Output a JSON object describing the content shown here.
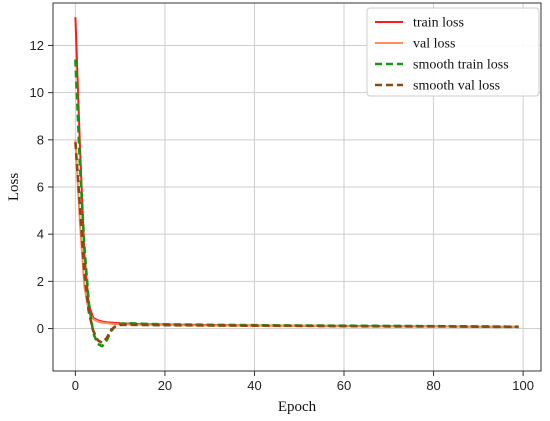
{
  "chart_data": {
    "type": "line",
    "title": "",
    "xlabel": "Epoch",
    "ylabel": "Loss",
    "xlim": [
      -5,
      104
    ],
    "ylim": [
      -1.8,
      13.8
    ],
    "xticks": [
      0,
      20,
      40,
      60,
      80,
      100
    ],
    "yticks": [
      0,
      2,
      4,
      6,
      8,
      10,
      12
    ],
    "grid": true,
    "legend_position": "top-right",
    "series": [
      {
        "name": "train loss",
        "color": "#ff1a1a",
        "dash": "solid",
        "x": [
          0,
          1,
          2,
          3,
          4,
          5,
          6,
          7,
          8,
          10,
          15,
          20,
          30,
          40,
          50,
          60,
          70,
          80,
          90,
          99
        ],
        "y": [
          13.2,
          7.8,
          3.2,
          1.0,
          0.45,
          0.35,
          0.3,
          0.27,
          0.25,
          0.22,
          0.19,
          0.17,
          0.15,
          0.13,
          0.12,
          0.11,
          0.1,
          0.09,
          0.08,
          0.07
        ]
      },
      {
        "name": "val loss",
        "color": "#ff8c5a",
        "dash": "solid",
        "x": [
          0,
          1,
          2,
          3,
          4,
          5,
          6,
          8,
          10,
          15,
          20,
          30,
          40,
          50,
          60,
          70,
          80,
          90,
          99
        ],
        "y": [
          8.0,
          4.5,
          1.8,
          0.7,
          0.4,
          0.3,
          0.25,
          0.2,
          0.18,
          0.16,
          0.15,
          0.13,
          0.12,
          0.11,
          0.1,
          0.09,
          0.09,
          0.08,
          0.07
        ]
      },
      {
        "name": "smooth train  loss",
        "color": "#119911",
        "dash": "dashed",
        "x": [
          0,
          1,
          2,
          3,
          4,
          5,
          6,
          7,
          8,
          9,
          10,
          12,
          15,
          20,
          30,
          40,
          50,
          60,
          70,
          80,
          90,
          99
        ],
        "y": [
          11.4,
          7.0,
          3.5,
          1.1,
          -0.2,
          -0.65,
          -0.75,
          -0.5,
          -0.1,
          0.12,
          0.2,
          0.22,
          0.2,
          0.18,
          0.16,
          0.14,
          0.13,
          0.12,
          0.11,
          0.1,
          0.09,
          0.08
        ]
      },
      {
        "name": "smooth val  loss",
        "color": "#8b4a10",
        "dash": "dashed",
        "x": [
          0,
          1,
          2,
          3,
          4,
          5,
          6,
          7,
          8,
          9,
          10,
          12,
          15,
          20,
          30,
          40,
          50,
          60,
          70,
          80,
          90,
          99
        ],
        "y": [
          7.9,
          5.2,
          2.4,
          0.7,
          -0.1,
          -0.5,
          -0.6,
          -0.4,
          -0.05,
          0.1,
          0.15,
          0.16,
          0.15,
          0.14,
          0.13,
          0.12,
          0.11,
          0.1,
          0.09,
          0.09,
          0.08,
          0.07
        ]
      }
    ]
  }
}
